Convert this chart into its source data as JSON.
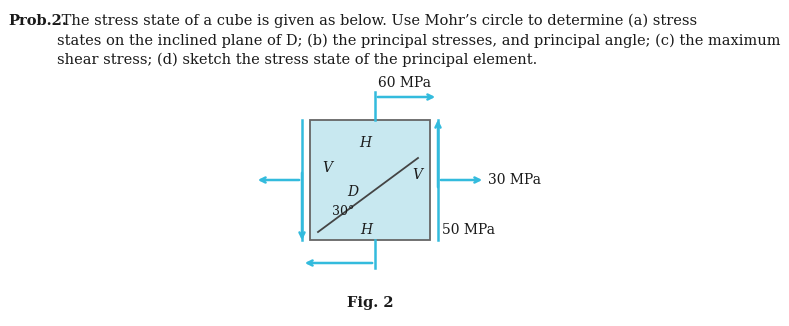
{
  "title_bold": "Prob.2.",
  "body_text": " The stress state of a cube is given as below. Use Mohr’s circle to determine (a) stress\nstates on the inclined plane of D; (b) the principal stresses, and principal angle; (c) the maximum\nshear stress; (d) sketch the stress state of the principal element.",
  "fig_label": "Fig. 2",
  "box_color": "#c8e8f0",
  "box_edge_color": "#666666",
  "arrow_color": "#33bbdd",
  "label_60MPa": "60 MPa",
  "label_30MPa": "30 MPa",
  "label_50MPa": "50 MPa",
  "label_H": "H",
  "label_V": "V",
  "label_D": "D",
  "angle_label": "30°",
  "text_color": "#1a1a1a"
}
